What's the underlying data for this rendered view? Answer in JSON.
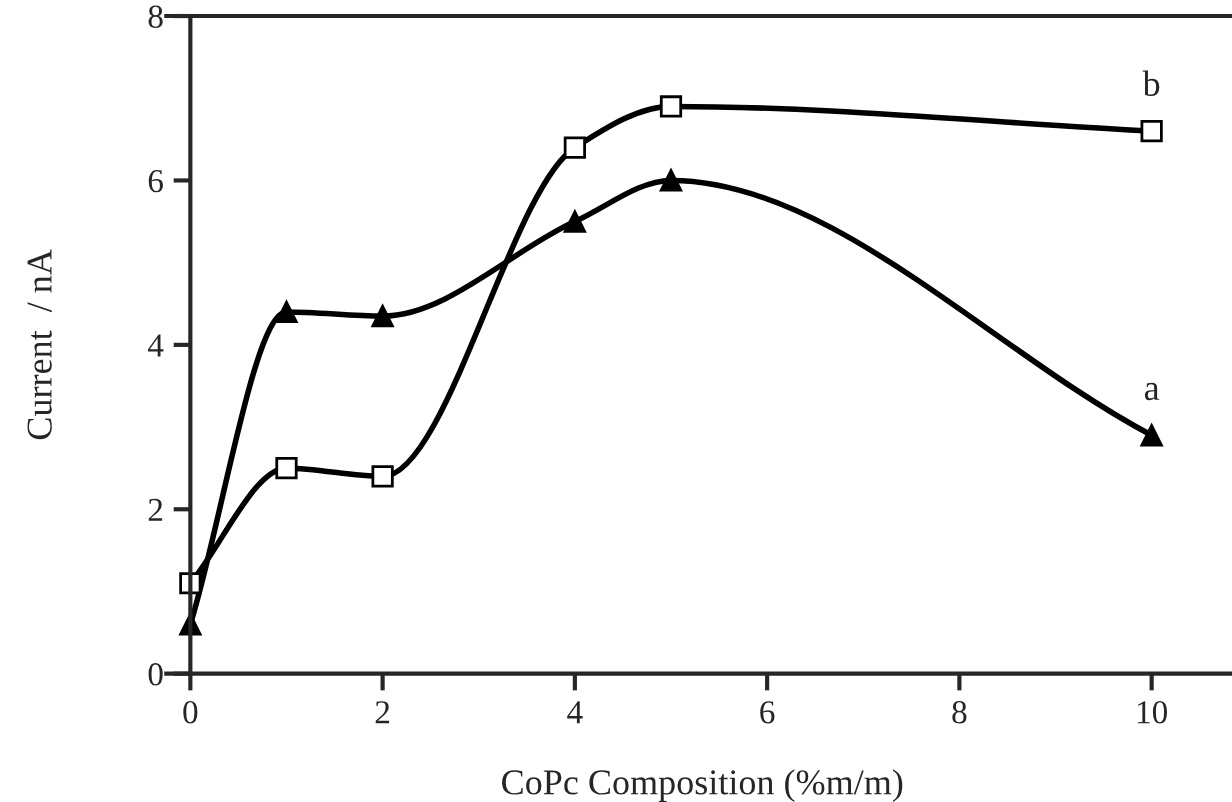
{
  "chart_data": {
    "type": "line",
    "xlabel": "CoPc Composition (%m/m)",
    "ylabel": "Current  / nA",
    "x": [
      0,
      1,
      2,
      4,
      5,
      10
    ],
    "series": [
      {
        "name": "a",
        "color": "#000000",
        "marker": "triangle",
        "values": [
          0.6,
          4.4,
          4.35,
          5.5,
          6.0,
          2.9
        ]
      },
      {
        "name": "b",
        "color": "#000000",
        "marker": "square",
        "values": [
          1.1,
          2.5,
          2.4,
          6.4,
          6.9,
          6.6
        ]
      }
    ],
    "xlim": [
      -0.25,
      10.9
    ],
    "ylim": [
      0,
      8
    ],
    "xticks": [
      0,
      2,
      4,
      6,
      8,
      10
    ],
    "yticks": [
      0,
      2,
      4,
      6,
      8
    ],
    "grid": false,
    "legend": false,
    "line_style": "solid"
  }
}
